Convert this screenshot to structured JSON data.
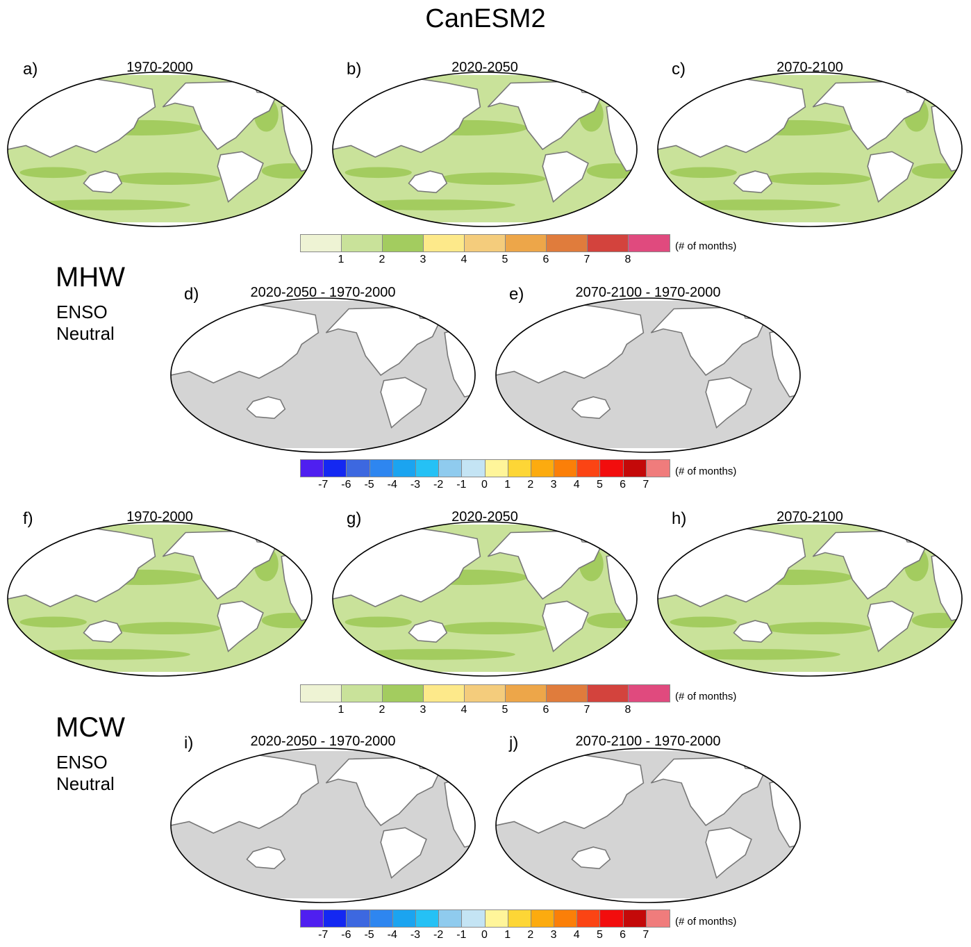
{
  "title": "CanESM2",
  "sections": [
    {
      "label": "MHW",
      "sub1": "ENSO",
      "sub2": "Neutral"
    },
    {
      "label": "MCW",
      "sub1": "ENSO",
      "sub2": "Neutral"
    }
  ],
  "panels": [
    {
      "letter": "a)",
      "period": "1970-2000",
      "kind": "abs"
    },
    {
      "letter": "b)",
      "period": "2020-2050",
      "kind": "abs"
    },
    {
      "letter": "c)",
      "period": "2070-2100",
      "kind": "abs"
    },
    {
      "letter": "d)",
      "period": "2020-2050 - 1970-2000",
      "kind": "diff"
    },
    {
      "letter": "e)",
      "period": "2070-2100 - 1970-2000",
      "kind": "diff"
    },
    {
      "letter": "f)",
      "period": "1970-2000",
      "kind": "abs"
    },
    {
      "letter": "g)",
      "period": "2020-2050",
      "kind": "abs"
    },
    {
      "letter": "h)",
      "period": "2070-2100",
      "kind": "abs"
    },
    {
      "letter": "i)",
      "period": "2020-2050 - 1970-2000",
      "kind": "diff"
    },
    {
      "letter": "j)",
      "period": "2070-2100 - 1970-2000",
      "kind": "diff"
    }
  ],
  "colorbar_abs": {
    "colors": [
      "#eef3d4",
      "#c9e29a",
      "#a3cc5f",
      "#fde98a",
      "#f4cc7c",
      "#eda649",
      "#e07c3c",
      "#d3433d",
      "#e04a7e"
    ],
    "ticks": [
      "1",
      "2",
      "3",
      "4",
      "5",
      "6",
      "7",
      "8"
    ],
    "unit": "(# of months)"
  },
  "colorbar_diff": {
    "colors": [
      "#4f1ff0",
      "#1428f2",
      "#3d68e0",
      "#2e86f0",
      "#1ba4f0",
      "#25c1f5",
      "#8fcbee",
      "#c4e4f4",
      "#fff59a",
      "#fdd636",
      "#fcab0f",
      "#fb7f08",
      "#fb4414",
      "#f20d0d",
      "#c40909",
      "#f07c7c"
    ],
    "ticks": [
      "-7",
      "-6",
      "-5",
      "-4",
      "-3",
      "-2",
      "-1",
      "0",
      "1",
      "2",
      "3",
      "4",
      "5",
      "6",
      "7"
    ],
    "unit": "(# of months)"
  },
  "colors": {
    "land": "#ffffff",
    "coast": "#777777",
    "abs_base": "#c9e29a",
    "abs_dark": "#a3cc5f",
    "diff_base": "#d4d4d4"
  }
}
